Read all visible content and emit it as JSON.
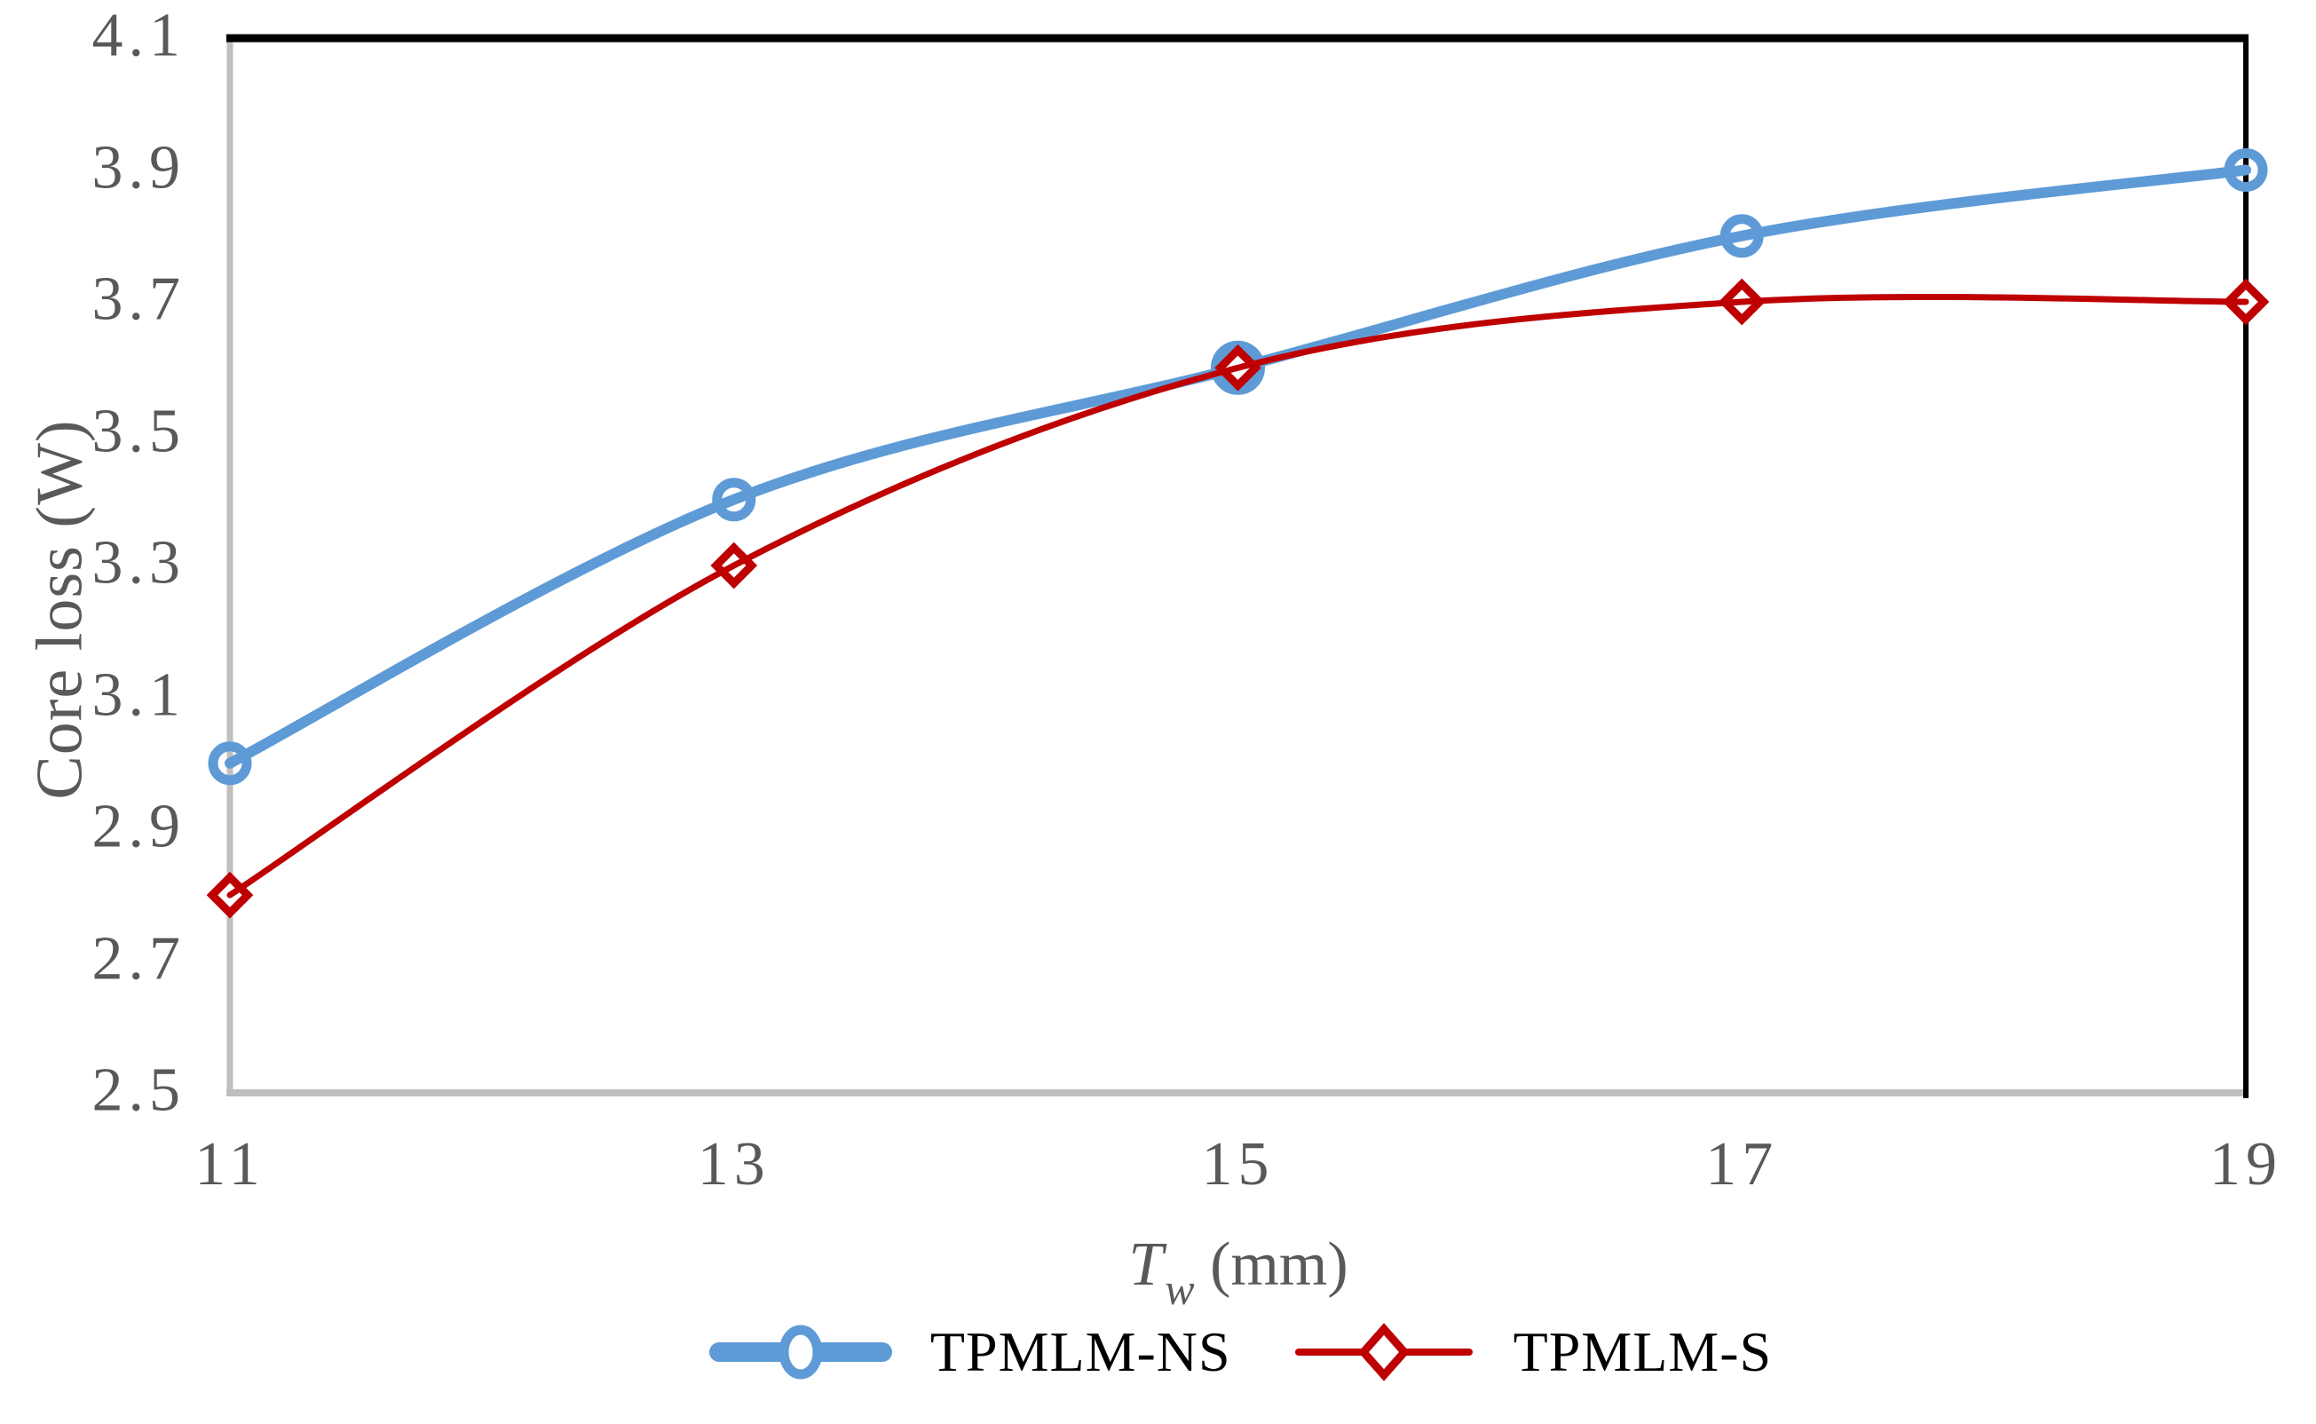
{
  "chart_data": {
    "type": "line",
    "x": [
      11,
      13,
      15,
      17,
      19
    ],
    "series": [
      {
        "name": "TPMLM-NS",
        "color": "#5E9BD6",
        "marker": "circle",
        "line_width": 12,
        "values": [
          3.0,
          3.4,
          3.6,
          3.8,
          3.9
        ]
      },
      {
        "name": "TPMLM-S",
        "color": "#BE0000",
        "marker": "diamond",
        "line_width": 7,
        "values": [
          2.8,
          3.3,
          3.6,
          3.7,
          3.7
        ]
      }
    ],
    "title": "",
    "ylabel": "Core loss (W)",
    "xlabel_parts": {
      "italic": "T",
      "sub": "w",
      "rest": " (mm)"
    },
    "xlim": [
      11,
      19
    ],
    "ylim": [
      2.5,
      4.1
    ],
    "xticks": [
      11,
      13,
      15,
      17,
      19
    ],
    "yticks": [
      2.5,
      2.7,
      2.9,
      3.1,
      3.3,
      3.5,
      3.7,
      3.9,
      4.1
    ],
    "grid": false,
    "smooth": true,
    "legend_position": "bottom",
    "colors": {
      "axis_line": "#BFBFBF",
      "plot_border": "#000000",
      "tick_labels": "#595959",
      "legend_text": "#000000",
      "background": "#FFFFFF"
    }
  }
}
